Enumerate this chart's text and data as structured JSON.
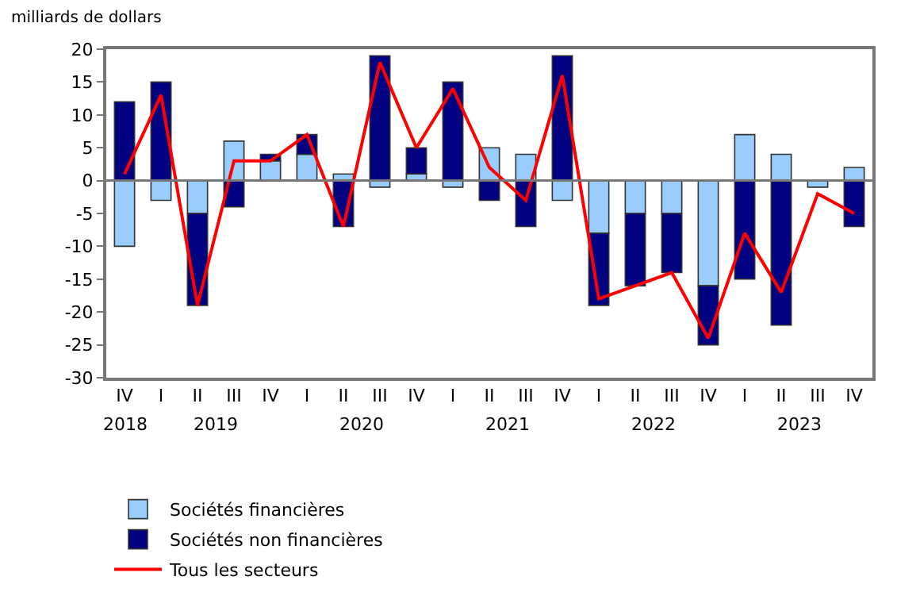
{
  "chart_data": {
    "type": "bar",
    "stacked": true,
    "ylabel": "milliards de dollars",
    "categories": [
      "IV",
      "I",
      "II",
      "III",
      "IV",
      "I",
      "II",
      "III",
      "IV",
      "I",
      "II",
      "III",
      "IV",
      "I",
      "II",
      "III",
      "IV",
      "I",
      "II",
      "III",
      "IV"
    ],
    "annotations": [
      "2018",
      "2019",
      "2020",
      "2021",
      "2022",
      "2023"
    ],
    "series": [
      {
        "name": "Sociétés financières",
        "color": "#99ccff",
        "values": [
          -10,
          -3,
          -5,
          6,
          3,
          4,
          1,
          -1,
          1,
          -1,
          5,
          4,
          -3,
          -8,
          -5,
          -5,
          -16,
          7,
          4,
          -1,
          2
        ]
      },
      {
        "name": "Sociétés non financières",
        "color": "#000080",
        "values": [
          12,
          15,
          -14,
          -4,
          1,
          3,
          -7,
          19,
          4,
          15,
          -3,
          -7,
          19,
          -11,
          -11,
          -9,
          -9,
          -15,
          -22,
          0,
          -7
        ]
      },
      {
        "name": "Tous les secteurs",
        "type": "line",
        "color": "#ff0000",
        "values": [
          1,
          13,
          -19,
          3,
          3,
          7,
          -7,
          18,
          5,
          14,
          2,
          -3,
          16,
          -18,
          -16,
          -14,
          -24,
          -8,
          -17,
          -2,
          -5
        ]
      }
    ],
    "ylim": [
      -30,
      20
    ],
    "yticks": [
      -30,
      -25,
      -20,
      -15,
      -10,
      -5,
      0,
      5,
      10,
      15,
      20
    ],
    "ref_lines": [
      {
        "axis": "y",
        "value": 0,
        "color": "#777777"
      }
    ],
    "legend": "bottom",
    "marker": "none",
    "line_style": "solid"
  }
}
